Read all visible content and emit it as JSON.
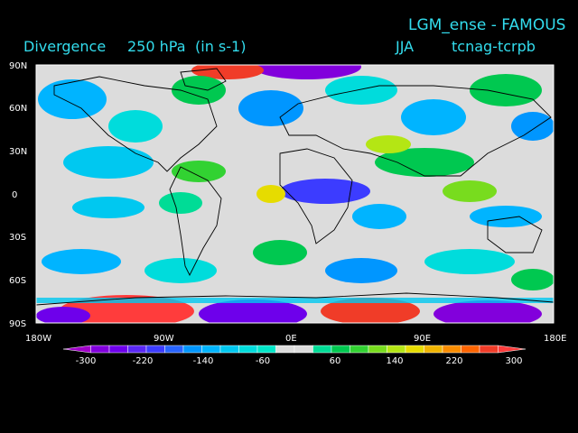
{
  "header": {
    "title_right": "LGM_ense - FAMOUS",
    "season": "JJA",
    "experiment": "tcnag-tcrpb",
    "variable": "Divergence",
    "level": "250 hPa",
    "units": "(in s-1)"
  },
  "axes": {
    "lat_labels": [
      "90N",
      "60N",
      "30N",
      "0",
      "30S",
      "60S",
      "90S"
    ],
    "lon_labels": [
      "180W",
      "90W",
      "0E",
      "90E",
      "180E"
    ],
    "lon_range": [
      -180,
      180
    ],
    "lat_range": [
      -90,
      90
    ]
  },
  "colorbar": {
    "tick_labels": [
      "-300",
      "-220",
      "-140",
      "-60",
      "60",
      "140",
      "220",
      "300"
    ],
    "colors": [
      "#a000c8",
      "#8200dc",
      "#6e00eb",
      "#5a28f5",
      "#3c3cff",
      "#2864ff",
      "#0096ff",
      "#00b4ff",
      "#00c8f0",
      "#00dcdc",
      "#00e6c8",
      "#dcdcdc",
      "#dcdcdc",
      "#00dc96",
      "#00c850",
      "#32d232",
      "#78dc1e",
      "#b4e614",
      "#e6dc00",
      "#f0b400",
      "#fa8c00",
      "#ff6400",
      "#f03c28",
      "#ff3c3c"
    ]
  },
  "colors": {
    "background": "#000000",
    "label_text": "#33ddee",
    "tick_text": "#ffffff",
    "neutral": "#dcdcdc"
  }
}
